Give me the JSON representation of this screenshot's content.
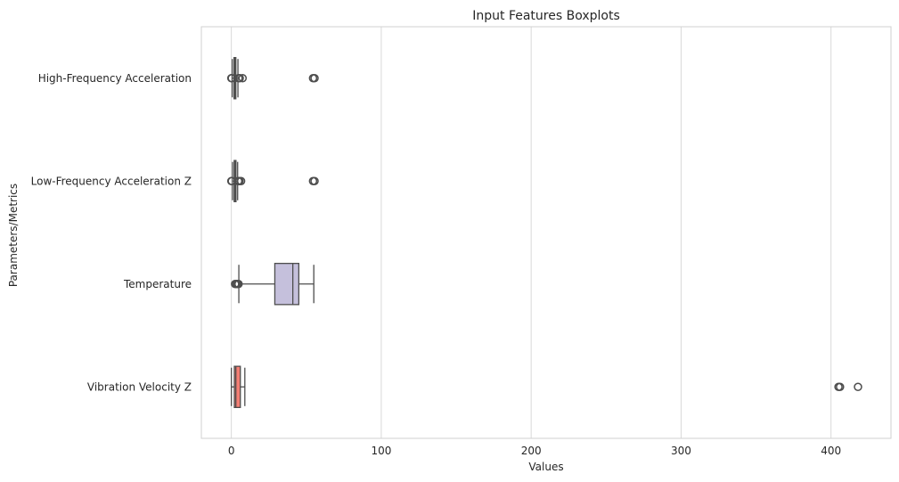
{
  "chart_data": {
    "type": "boxplot",
    "orientation": "horizontal",
    "title": "Input Features Boxplots",
    "xlabel": "Values",
    "ylabel": "Parameters/Metrics",
    "xlim": [
      -20,
      440
    ],
    "xticks": [
      0,
      100,
      200,
      300,
      400
    ],
    "grid": true,
    "categories": [
      "High-Frequency Acceleration",
      "Low-Frequency Acceleration Z",
      "Temperature",
      "Vibration Velocity Z"
    ],
    "series": [
      {
        "label": "High-Frequency Acceleration",
        "color": "#b3de69",
        "whisker_low": 0.6,
        "q1": 1.8,
        "median": 2.4,
        "q3": 3.0,
        "whisker_high": 4.4,
        "outliers": [
          0,
          0.3,
          4.8,
          5.6,
          7.5,
          54.5,
          55.5
        ]
      },
      {
        "label": "Low-Frequency Acceleration Z",
        "color": "#80b1d3",
        "whisker_low": 0.8,
        "q1": 1.9,
        "median": 2.5,
        "q3": 3.1,
        "whisker_high": 4.2,
        "outliers": [
          0,
          0.3,
          4.6,
          5.4,
          6.5,
          54.5,
          55.5
        ]
      },
      {
        "label": "Temperature",
        "color": "#c5c0dc",
        "whisker_low": 5,
        "q1": 29,
        "median": 41,
        "q3": 45,
        "whisker_high": 55,
        "outliers": [
          2.5,
          3.2,
          4.0,
          4.8
        ]
      },
      {
        "label": "Vibration Velocity Z",
        "color": "#f47e74",
        "whisker_low": 0,
        "q1": 2,
        "median": 3,
        "q3": 6,
        "whisker_high": 9,
        "outliers": [
          405,
          406,
          418
        ]
      }
    ]
  }
}
